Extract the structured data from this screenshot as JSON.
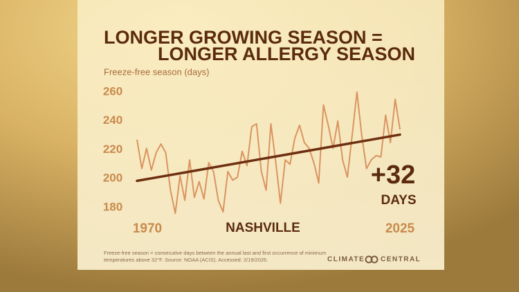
{
  "chart_data": {
    "type": "line",
    "title": [
      "LONGER GROWING SEASON =",
      "LONGER ALLERGY SEASON"
    ],
    "y_label": "Freeze-free season (days)",
    "x": [
      1970,
      1971,
      1972,
      1973,
      1974,
      1975,
      1976,
      1977,
      1978,
      1979,
      1980,
      1981,
      1982,
      1983,
      1984,
      1985,
      1986,
      1987,
      1988,
      1989,
      1990,
      1991,
      1992,
      1993,
      1994,
      1995,
      1996,
      1997,
      1998,
      1999,
      2000,
      2001,
      2002,
      2003,
      2004,
      2005,
      2006,
      2007,
      2008,
      2009,
      2010,
      2011,
      2012,
      2013,
      2014,
      2015,
      2016,
      2017,
      2018,
      2019,
      2020,
      2021,
      2022,
      2023,
      2024,
      2025
    ],
    "values": [
      227,
      207,
      221,
      206,
      218,
      224,
      218,
      192,
      176,
      202,
      185,
      213,
      187,
      198,
      186,
      211,
      205,
      185,
      177,
      205,
      199,
      201,
      219,
      209,
      236,
      238,
      205,
      192,
      238,
      212,
      183,
      213,
      210,
      228,
      237,
      225,
      221,
      211,
      197,
      251,
      237,
      221,
      240,
      213,
      201,
      230,
      260,
      230,
      207,
      213,
      216,
      215,
      244,
      225,
      255,
      234
    ],
    "color": "#da9460",
    "trend": {
      "x": [
        1970,
        2025
      ],
      "values": [
        198.5,
        230.5
      ],
      "color": "#6e2f10"
    },
    "xlim": [
      1970,
      2025
    ],
    "ylim": [
      180,
      260
    ],
    "xticks": [
      1970,
      2025
    ],
    "yticks": [
      180,
      200,
      220,
      240,
      260
    ],
    "grid": false,
    "annotations": {
      "change": "+32",
      "unit": "DAYS",
      "location": "NASHVILLE"
    },
    "footnote": [
      "Freeze-free season = consecutive days between the annual last and first occurrence of minimum",
      "temperatures above 32°F. Source: NOAA (ACIS). Accessed: 2/19/2026."
    ],
    "logo": [
      "CLIMATE",
      "CENTRAL"
    ]
  }
}
